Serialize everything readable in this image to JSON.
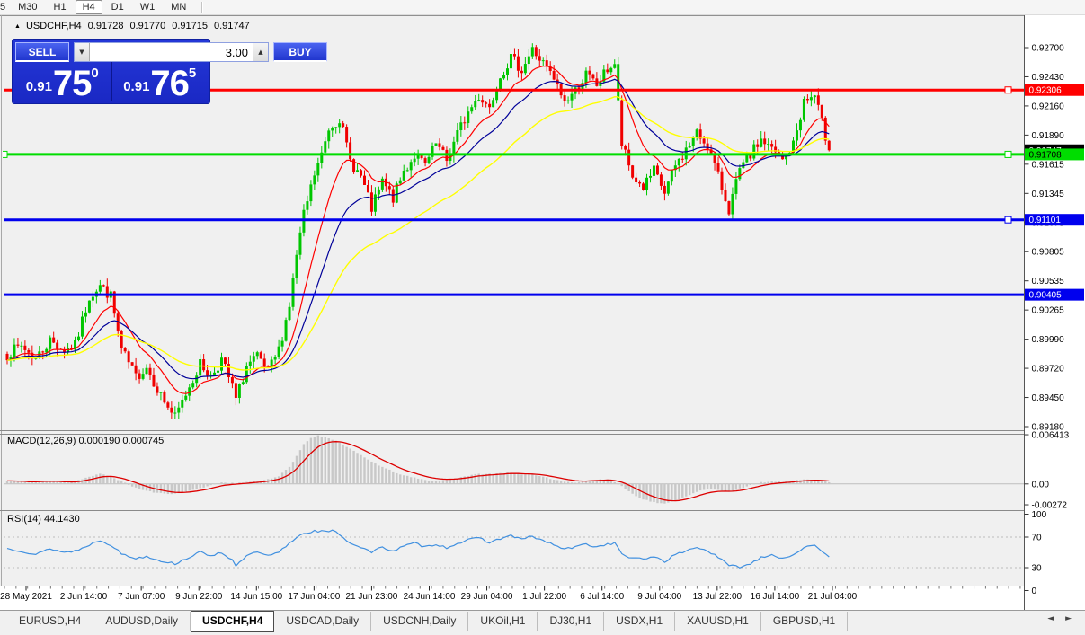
{
  "toolbar": {
    "timeframes": [
      {
        "label": "5",
        "active": false,
        "partial": true
      },
      {
        "label": "M30",
        "active": false
      },
      {
        "label": "H1",
        "active": false
      },
      {
        "label": "H4",
        "active": true
      },
      {
        "label": "D1",
        "active": false
      },
      {
        "label": "W1",
        "active": false
      },
      {
        "label": "MN",
        "active": false
      }
    ]
  },
  "chart_header": {
    "collapse_icon": "▲",
    "symbol": "USDCHF,H4",
    "open": "0.91728",
    "high": "0.91770",
    "low": "0.91715",
    "close": "0.91747"
  },
  "trade_panel": {
    "sell_label": "SELL",
    "buy_label": "BUY",
    "volume": "3.00",
    "spin_down_icon": "▼",
    "spin_up_icon": "▲",
    "sell_price": {
      "small": "0.91",
      "big": "75",
      "sup": "0"
    },
    "buy_price": {
      "small": "0.91",
      "big": "76",
      "sup": "5"
    }
  },
  "indicators": {
    "macd_label": "MACD(12,26,9) 0.000190 0.000745",
    "rsi_label": "RSI(14) 44.1430"
  },
  "axes": {
    "price_ticks": [
      "0.92700",
      "0.92430",
      "0.92160",
      "0.91890",
      "0.91615",
      "0.91345",
      "0.91075",
      "0.90805",
      "0.90535",
      "0.90265",
      "0.89990",
      "0.89720",
      "0.89450",
      "0.89180"
    ],
    "price_badges": [
      {
        "text": "0.92306",
        "price": 0.92306,
        "bg": "#FF0000",
        "fg": "#FFFFFF"
      },
      {
        "text": "0.91747",
        "price": 0.91747,
        "bg": "#000000",
        "fg": "#FFFFFF"
      },
      {
        "text": "0.91708",
        "price": 0.91708,
        "bg": "#00DD00",
        "fg": "#000000"
      },
      {
        "text": "0.91101",
        "price": 0.91101,
        "bg": "#0000EE",
        "fg": "#FFFFFF"
      },
      {
        "text": "0.90405",
        "price": 0.90405,
        "bg": "#0000EE",
        "fg": "#FFFFFF"
      }
    ],
    "macd_ticks": [
      {
        "text": "0.006413",
        "value": 0.006413
      },
      {
        "text": "0.00",
        "value": 0.0
      },
      {
        "text": "-0.00272",
        "value": -0.00272
      }
    ],
    "rsi_ticks": [
      {
        "text": "100",
        "value": 100
      },
      {
        "text": "70",
        "value": 70
      },
      {
        "text": "30",
        "value": 30
      },
      {
        "text": "0",
        "value": 0
      }
    ],
    "time_labels": [
      "28 May 2021",
      "2 Jun 14:00",
      "7 Jun 07:00",
      "9 Jun 22:00",
      "14 Jun 15:00",
      "17 Jun 04:00",
      "21 Jun 23:00",
      "24 Jun 14:00",
      "29 Jun 04:00",
      "1 Jul 22:00",
      "6 Jul 14:00",
      "9 Jul 04:00",
      "13 Jul 22:00",
      "16 Jul 14:00",
      "21 Jul 04:00"
    ]
  },
  "tabs": {
    "items": [
      "EURUSD,H4",
      "AUDUSD,Daily",
      "USDCHF,H4",
      "USDCAD,Daily",
      "USDCNH,Daily",
      "UKOil,H1",
      "DJ30,H1",
      "USDX,H1",
      "XAUUSD,H1",
      "GBPUSD,H1"
    ],
    "active": "USDCHF,H4",
    "scroll_left_icon": "◄",
    "scroll_right_icon": "►"
  },
  "colors": {
    "bull": "#00C600",
    "bear": "#F00000",
    "ma_fast": "#FF0000",
    "ma_mid": "#000099",
    "ma_slow": "#FFFF00",
    "macd_bar": "#C8C8C8",
    "macd_signal": "#DD0000",
    "rsi_line": "#4090E0",
    "rsi_level": "#BBBBBB",
    "panel_blue": "#1C2CD3",
    "axis_line": "#555555"
  },
  "chart_data": {
    "type": "candlestick",
    "symbol": "USDCHF",
    "timeframe": "H4",
    "title": "USDCHF,H4",
    "ohlc_current": {
      "open": 0.91728,
      "high": 0.9177,
      "low": 0.91715,
      "close": 0.91747
    },
    "x_range": [
      "28 May 2021",
      "21 Jul 04:00"
    ],
    "y_range": [
      0.8918,
      0.9274
    ],
    "n_bars": 231,
    "close_path": [
      [
        0,
        0.8985
      ],
      [
        4,
        0.8993
      ],
      [
        8,
        0.8981
      ],
      [
        12,
        0.8998
      ],
      [
        16,
        0.8989
      ],
      [
        19,
        0.8993
      ],
      [
        23,
        0.9039
      ],
      [
        26,
        0.9049
      ],
      [
        29,
        0.9039
      ],
      [
        32,
        0.8989
      ],
      [
        36,
        0.8964
      ],
      [
        39,
        0.8974
      ],
      [
        43,
        0.8947
      ],
      [
        47,
        0.8926
      ],
      [
        51,
        0.8956
      ],
      [
        54,
        0.8976
      ],
      [
        57,
        0.8965
      ],
      [
        60,
        0.898
      ],
      [
        63,
        0.8955
      ],
      [
        64,
        0.8943
      ],
      [
        67,
        0.8974
      ],
      [
        70,
        0.8982
      ],
      [
        73,
        0.8968
      ],
      [
        76,
        0.8989
      ],
      [
        79,
        0.9031
      ],
      [
        81,
        0.9077
      ],
      [
        83,
        0.9114
      ],
      [
        86,
        0.9152
      ],
      [
        88,
        0.917
      ],
      [
        90,
        0.9195
      ],
      [
        93,
        0.9205
      ],
      [
        96,
        0.9165
      ],
      [
        99,
        0.915
      ],
      [
        102,
        0.912
      ],
      [
        105,
        0.9145
      ],
      [
        108,
        0.913
      ],
      [
        111,
        0.9155
      ],
      [
        114,
        0.917
      ],
      [
        117,
        0.916
      ],
      [
        120,
        0.918
      ],
      [
        123,
        0.9165
      ],
      [
        126,
        0.919
      ],
      [
        129,
        0.921
      ],
      [
        132,
        0.9225
      ],
      [
        135,
        0.9215
      ],
      [
        138,
        0.9245
      ],
      [
        141,
        0.926
      ],
      [
        144,
        0.925
      ],
      [
        147,
        0.9268
      ],
      [
        150,
        0.9255
      ],
      [
        153,
        0.924
      ],
      [
        156,
        0.922
      ],
      [
        159,
        0.923
      ],
      [
        162,
        0.9245
      ],
      [
        165,
        0.9235
      ],
      [
        168,
        0.925
      ],
      [
        170,
        0.9255
      ],
      [
        172,
        0.918
      ],
      [
        175,
        0.915
      ],
      [
        178,
        0.914
      ],
      [
        181,
        0.9155
      ],
      [
        184,
        0.9135
      ],
      [
        187,
        0.916
      ],
      [
        190,
        0.9175
      ],
      [
        193,
        0.919
      ],
      [
        196,
        0.918
      ],
      [
        199,
        0.915
      ],
      [
        202,
        0.912
      ],
      [
        205,
        0.9155
      ],
      [
        208,
        0.917
      ],
      [
        211,
        0.9185
      ],
      [
        214,
        0.9175
      ],
      [
        217,
        0.9165
      ],
      [
        220,
        0.918
      ],
      [
        223,
        0.922
      ],
      [
        226,
        0.9225
      ],
      [
        228,
        0.92
      ],
      [
        230,
        0.91747
      ]
    ],
    "candle_overrides": [
      {
        "i": 171,
        "bull": true
      }
    ],
    "horizontal_levels": [
      {
        "price": 0.92306,
        "color": "#FF0000",
        "width": 3,
        "markers": [
          1121
        ]
      },
      {
        "price": 0.91708,
        "color": "#00DD00",
        "width": 3,
        "markers": [
          4,
          1121
        ]
      },
      {
        "price": 0.91101,
        "color": "#0000EE",
        "width": 3,
        "markers": [
          1121
        ]
      },
      {
        "price": 0.90405,
        "color": "#0000EE",
        "width": 3,
        "markers": []
      }
    ],
    "moving_averages": [
      {
        "period": 12,
        "color": "#FF0000",
        "w": 1.2
      },
      {
        "period": 24,
        "color": "#000099",
        "w": 1.2
      },
      {
        "period": 48,
        "color": "#FFFF00",
        "w": 1.4
      }
    ],
    "macd": {
      "params": "12,26,9",
      "current_main": 0.00019,
      "current_signal": 0.000745,
      "y_max": 0.006413,
      "y_min": -0.00272,
      "main_path": [
        [
          0,
          0.0004
        ],
        [
          6,
          0.0002
        ],
        [
          10,
          0.0004
        ],
        [
          14,
          0.0003
        ],
        [
          18,
          0.0002
        ],
        [
          22,
          0.0008
        ],
        [
          26,
          0.0013
        ],
        [
          29,
          0.001
        ],
        [
          33,
          0.0001
        ],
        [
          37,
          -0.0007
        ],
        [
          42,
          -0.0012
        ],
        [
          47,
          -0.0013
        ],
        [
          52,
          -0.0008
        ],
        [
          56,
          -0.0003
        ],
        [
          60,
          0.0002
        ],
        [
          64,
          0.0001
        ],
        [
          68,
          0.0003
        ],
        [
          72,
          0.0005
        ],
        [
          76,
          0.001
        ],
        [
          79,
          0.0022
        ],
        [
          81,
          0.0036
        ],
        [
          83,
          0.0052
        ],
        [
          85,
          0.006
        ],
        [
          87,
          0.0063
        ],
        [
          90,
          0.006
        ],
        [
          93,
          0.0054
        ],
        [
          96,
          0.0046
        ],
        [
          99,
          0.0037
        ],
        [
          102,
          0.0029
        ],
        [
          105,
          0.0022
        ],
        [
          108,
          0.0016
        ],
        [
          111,
          0.0011
        ],
        [
          114,
          0.0008
        ],
        [
          117,
          0.0005
        ],
        [
          120,
          0.0004
        ],
        [
          124,
          0.0006
        ],
        [
          128,
          0.001
        ],
        [
          132,
          0.0013
        ],
        [
          136,
          0.0013
        ],
        [
          140,
          0.0015
        ],
        [
          144,
          0.0013
        ],
        [
          147,
          0.0012
        ],
        [
          150,
          0.0009
        ],
        [
          153,
          0.0006
        ],
        [
          156,
          0.0003
        ],
        [
          159,
          0.0002
        ],
        [
          162,
          0.0004
        ],
        [
          166,
          0.0006
        ],
        [
          169,
          0.0005
        ],
        [
          172,
          -0.0003
        ],
        [
          175,
          -0.0013
        ],
        [
          178,
          -0.002
        ],
        [
          181,
          -0.0024
        ],
        [
          184,
          -0.0026
        ],
        [
          187,
          -0.0022
        ],
        [
          190,
          -0.0016
        ],
        [
          193,
          -0.001
        ],
        [
          196,
          -0.0007
        ],
        [
          199,
          -0.0008
        ],
        [
          202,
          -0.001
        ],
        [
          205,
          -0.0006
        ],
        [
          208,
          -0.0002
        ],
        [
          211,
          0.0002
        ],
        [
          214,
          0.0003
        ],
        [
          217,
          0.0003
        ],
        [
          220,
          0.0004
        ],
        [
          223,
          0.0006
        ],
        [
          226,
          0.0006
        ],
        [
          228,
          0.0004
        ],
        [
          230,
          0.0002
        ]
      ]
    },
    "rsi": {
      "period": 14,
      "current": 44.143,
      "levels": [
        70,
        30
      ],
      "path": [
        [
          0,
          55
        ],
        [
          4,
          52
        ],
        [
          8,
          47
        ],
        [
          12,
          55
        ],
        [
          16,
          50
        ],
        [
          20,
          53
        ],
        [
          23,
          60
        ],
        [
          26,
          66
        ],
        [
          29,
          60
        ],
        [
          32,
          48
        ],
        [
          36,
          42
        ],
        [
          39,
          45
        ],
        [
          43,
          39
        ],
        [
          47,
          35
        ],
        [
          51,
          44
        ],
        [
          54,
          50
        ],
        [
          57,
          46
        ],
        [
          60,
          50
        ],
        [
          63,
          40
        ],
        [
          64,
          31
        ],
        [
          67,
          46
        ],
        [
          70,
          50
        ],
        [
          73,
          45
        ],
        [
          76,
          50
        ],
        [
          79,
          62
        ],
        [
          81,
          70
        ],
        [
          83,
          75
        ],
        [
          86,
          78
        ],
        [
          89,
          77
        ],
        [
          91,
          78
        ],
        [
          93,
          74
        ],
        [
          96,
          62
        ],
        [
          99,
          57
        ],
        [
          102,
          50
        ],
        [
          105,
          57
        ],
        [
          108,
          52
        ],
        [
          111,
          58
        ],
        [
          114,
          62
        ],
        [
          117,
          57
        ],
        [
          120,
          61
        ],
        [
          123,
          56
        ],
        [
          126,
          62
        ],
        [
          129,
          66
        ],
        [
          132,
          69
        ],
        [
          135,
          63
        ],
        [
          138,
          68
        ],
        [
          141,
          72
        ],
        [
          144,
          67
        ],
        [
          147,
          71
        ],
        [
          150,
          65
        ],
        [
          153,
          60
        ],
        [
          156,
          54
        ],
        [
          159,
          57
        ],
        [
          162,
          61
        ],
        [
          165,
          57
        ],
        [
          168,
          61
        ],
        [
          170,
          62
        ],
        [
          172,
          48
        ],
        [
          175,
          42
        ],
        [
          178,
          41
        ],
        [
          181,
          45
        ],
        [
          184,
          38
        ],
        [
          187,
          47
        ],
        [
          190,
          52
        ],
        [
          193,
          57
        ],
        [
          196,
          52
        ],
        [
          199,
          43
        ],
        [
          202,
          33
        ],
        [
          205,
          31
        ],
        [
          208,
          35
        ],
        [
          211,
          44
        ],
        [
          214,
          47
        ],
        [
          217,
          42
        ],
        [
          220,
          47
        ],
        [
          223,
          57
        ],
        [
          226,
          58
        ],
        [
          228,
          50
        ],
        [
          230,
          44
        ]
      ]
    }
  }
}
